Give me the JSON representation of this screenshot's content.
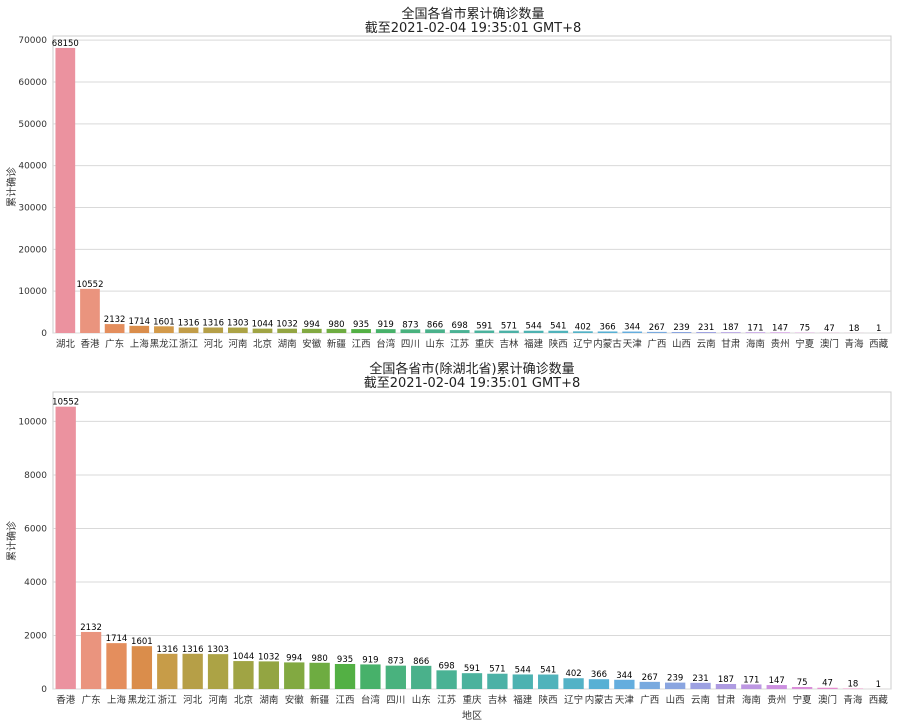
{
  "chart_data": [
    {
      "type": "bar",
      "title": "全国各省市累计确诊数量",
      "subtitle": "截至2021-02-04 19:35:01 GMT+8",
      "xlabel": "",
      "ylabel": "累计确诊",
      "ylim": [
        0,
        71000
      ],
      "yticks": [
        0,
        10000,
        20000,
        30000,
        40000,
        50000,
        60000,
        70000
      ],
      "grid": true,
      "categories": [
        "湖北",
        "香港",
        "广东",
        "上海",
        "黑龙江",
        "浙江",
        "河北",
        "河南",
        "北京",
        "湖南",
        "安徽",
        "新疆",
        "江西",
        "台湾",
        "四川",
        "山东",
        "江苏",
        "重庆",
        "吉林",
        "福建",
        "陕西",
        "辽宁",
        "内蒙古",
        "天津",
        "广西",
        "山西",
        "云南",
        "甘肃",
        "海南",
        "贵州",
        "宁夏",
        "澳门",
        "青海",
        "西藏"
      ],
      "values": [
        68150,
        10552,
        2132,
        1714,
        1601,
        1316,
        1316,
        1303,
        1044,
        1032,
        994,
        980,
        935,
        919,
        873,
        866,
        698,
        591,
        571,
        544,
        541,
        402,
        366,
        344,
        267,
        239,
        231,
        187,
        171,
        147,
        75,
        47,
        18,
        1
      ],
      "colors": [
        "#eb929f",
        "#ea947e",
        "#e48e5d",
        "#da8d4b",
        "#d39a4a",
        "#c29d48",
        "#b59f47",
        "#aca345",
        "#a0a444",
        "#93a542",
        "#82a941",
        "#6eac41",
        "#53b044",
        "#47b16a",
        "#49b27e",
        "#4ab18b",
        "#4ab294",
        "#4bb29d",
        "#4cb1a6",
        "#4db2b1",
        "#50b3bb",
        "#53b2c6",
        "#57b0d4",
        "#64adde",
        "#79aadf",
        "#8aa5e0",
        "#9da1e2",
        "#ae9be1",
        "#bd97e2",
        "#cc90e0",
        "#da8ed9",
        "#e48ccf",
        "#e98ec4",
        "#eb90b5"
      ]
    },
    {
      "type": "bar",
      "title": "全国各省市(除湖北省)累计确诊数量",
      "subtitle": "截至2021-02-04 19:35:01 GMT+8",
      "xlabel": "地区",
      "ylabel": "累计确诊",
      "ylim": [
        0,
        11100
      ],
      "yticks": [
        0,
        2000,
        4000,
        6000,
        8000,
        10000
      ],
      "grid": true,
      "categories": [
        "香港",
        "广东",
        "上海",
        "黑龙江",
        "浙江",
        "河北",
        "河南",
        "北京",
        "湖南",
        "安徽",
        "新疆",
        "江西",
        "台湾",
        "四川",
        "山东",
        "江苏",
        "重庆",
        "吉林",
        "福建",
        "陕西",
        "辽宁",
        "内蒙古",
        "天津",
        "广西",
        "山西",
        "云南",
        "甘肃",
        "海南",
        "贵州",
        "宁夏",
        "澳门",
        "青海",
        "西藏"
      ],
      "values": [
        10552,
        2132,
        1714,
        1601,
        1316,
        1316,
        1303,
        1044,
        1032,
        994,
        980,
        935,
        919,
        873,
        866,
        698,
        591,
        571,
        544,
        541,
        402,
        366,
        344,
        267,
        239,
        231,
        187,
        171,
        147,
        75,
        47,
        18,
        1
      ],
      "colors": [
        "#eb929f",
        "#ea947e",
        "#e48e5d",
        "#da8d4b",
        "#c79c48",
        "#b69f47",
        "#aca345",
        "#a0a444",
        "#93a542",
        "#82a941",
        "#6eac41",
        "#53b044",
        "#47b16a",
        "#49b27e",
        "#4ab18b",
        "#4ab294",
        "#4bb29d",
        "#4cb1a6",
        "#4db2b1",
        "#50b3bb",
        "#53b2c6",
        "#57b0d4",
        "#64adde",
        "#79aadf",
        "#8aa5e0",
        "#9da1e2",
        "#ae9be1",
        "#bd97e2",
        "#cc90e0",
        "#da8ed9",
        "#e48ccf",
        "#e98ec4",
        "#eb90b5"
      ]
    }
  ]
}
